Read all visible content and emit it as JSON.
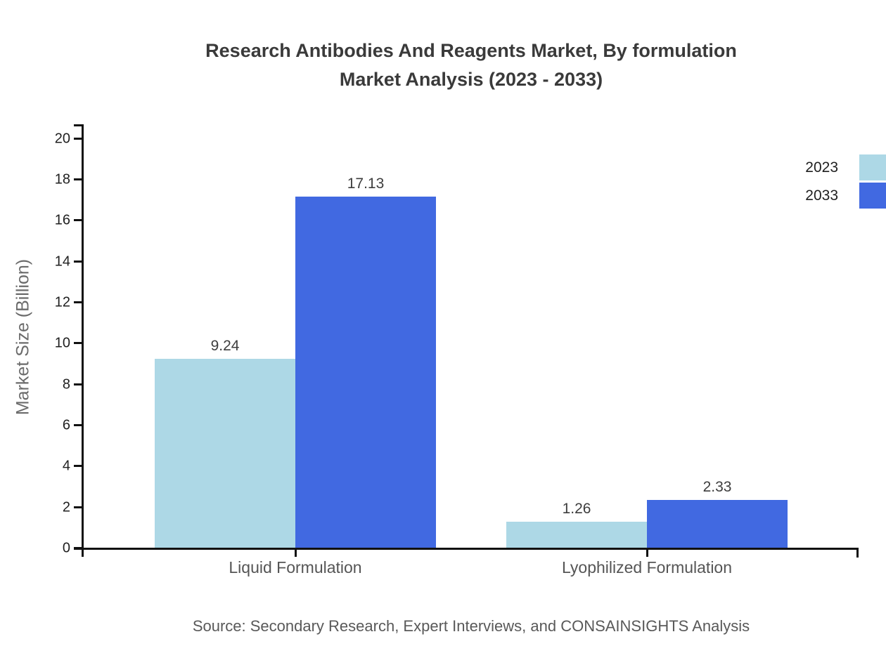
{
  "chart_data": {
    "type": "bar",
    "title_line1": "Research Antibodies And Reagents Market, By formulation",
    "title_line2": "Market Analysis (2023 - 2033)",
    "categories": [
      "Liquid Formulation",
      "Lyophilized Formulation"
    ],
    "series": [
      {
        "name": "2023",
        "color": "#ADD8E6",
        "values": [
          9.24,
          1.26
        ]
      },
      {
        "name": "2033",
        "color": "#4169E1",
        "values": [
          17.13,
          2.33
        ]
      }
    ],
    "value_labels": [
      "9.24",
      "17.13",
      "1.26",
      "2.33"
    ],
    "xlabel": "",
    "ylabel": "Market Size (Billion)",
    "ylim": [
      0,
      20
    ],
    "yticks": [
      0,
      2,
      4,
      6,
      8,
      10,
      12,
      14,
      16,
      18,
      20
    ],
    "grid": false,
    "legend_position": "top-right",
    "source_note": "Source: Secondary Research, Expert Interviews, and CONSAINSIGHTS Analysis",
    "axis_color": "#111111",
    "text_colors": {
      "title": "#3a3a3a",
      "tick_labels": "#1f1f1f",
      "value_labels": "#3d3d3d",
      "category_labels": "#555555",
      "axis_label": "#6b6b6b",
      "source": "#595959"
    }
  }
}
